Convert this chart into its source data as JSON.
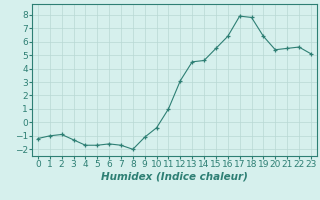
{
  "x": [
    0,
    1,
    2,
    3,
    4,
    5,
    6,
    7,
    8,
    9,
    10,
    11,
    12,
    13,
    14,
    15,
    16,
    17,
    18,
    19,
    20,
    21,
    22,
    23
  ],
  "y": [
    -1.2,
    -1.0,
    -0.9,
    -1.3,
    -1.7,
    -1.7,
    -1.6,
    -1.7,
    -2.0,
    -1.1,
    -0.4,
    1.0,
    3.1,
    4.5,
    4.6,
    5.5,
    6.4,
    7.9,
    7.8,
    6.4,
    5.4,
    5.5,
    5.6,
    5.1
  ],
  "line_color": "#2e7f74",
  "marker": "+",
  "marker_size": 3,
  "bg_color": "#d6f0ed",
  "grid_color": "#b8d8d4",
  "axis_color": "#2e7f74",
  "xlabel": "Humidex (Indice chaleur)",
  "ylim": [
    -2.5,
    8.8
  ],
  "xlim": [
    -0.5,
    23.5
  ],
  "yticks": [
    -2,
    -1,
    0,
    1,
    2,
    3,
    4,
    5,
    6,
    7,
    8
  ],
  "xtick_labels": [
    "0",
    "1",
    "2",
    "3",
    "4",
    "5",
    "6",
    "7",
    "8",
    "9",
    "10",
    "11",
    "12",
    "13",
    "14",
    "15",
    "16",
    "17",
    "18",
    "19",
    "20",
    "21",
    "22",
    "23"
  ],
  "label_fontsize": 7.5,
  "tick_fontsize": 6.5
}
